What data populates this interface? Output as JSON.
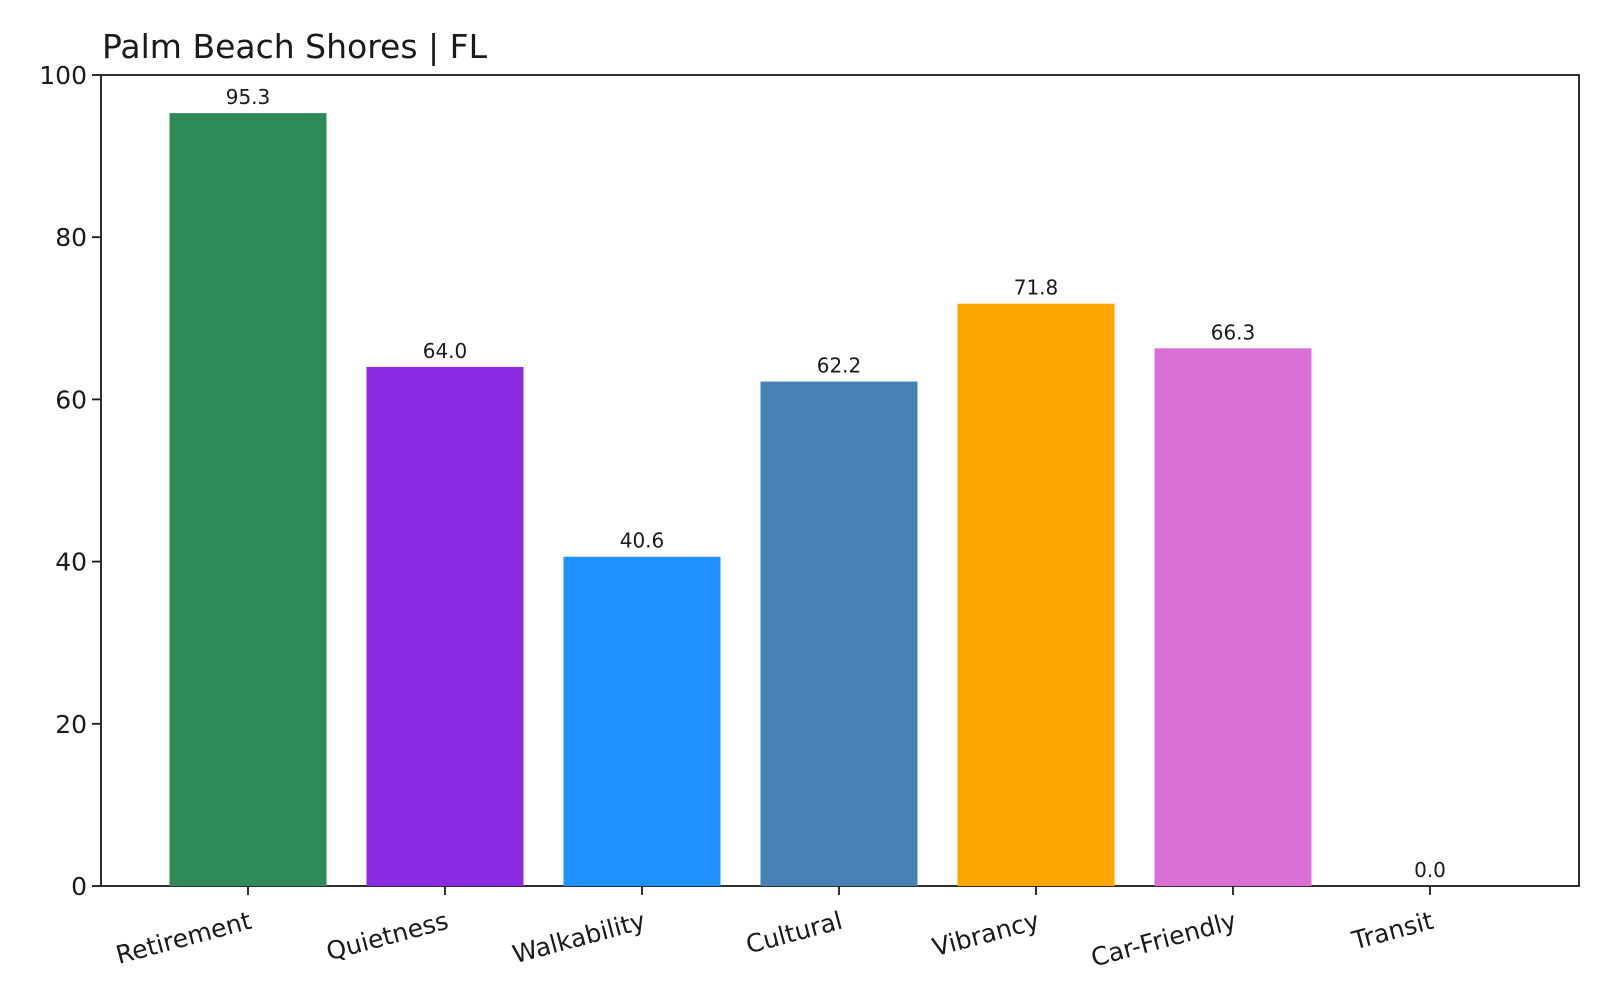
{
  "chart_data": {
    "type": "bar",
    "title": "Palm Beach Shores | FL",
    "xlabel": "",
    "ylabel": "",
    "categories": [
      "Retirement",
      "Quietness",
      "Walkability",
      "Cultural",
      "Vibrancy",
      "Car-Friendly",
      "Transit"
    ],
    "values": [
      95.3,
      64.0,
      40.6,
      62.2,
      71.8,
      66.3,
      0.0
    ],
    "value_labels": [
      "95.3",
      "64.0",
      "40.6",
      "62.2",
      "71.8",
      "66.3",
      "0.0"
    ],
    "colors": [
      "#2e8b57",
      "#8a2be2",
      "#1e90ff",
      "#4682b4",
      "#ffa500",
      "#da70d6",
      "#708090"
    ],
    "ylim": [
      0,
      100
    ],
    "yticks": [
      0,
      20,
      40,
      60,
      80,
      100
    ],
    "ytick_labels": [
      "0",
      "20",
      "40",
      "60",
      "80",
      "100"
    ],
    "grid": false,
    "legend": "none"
  }
}
